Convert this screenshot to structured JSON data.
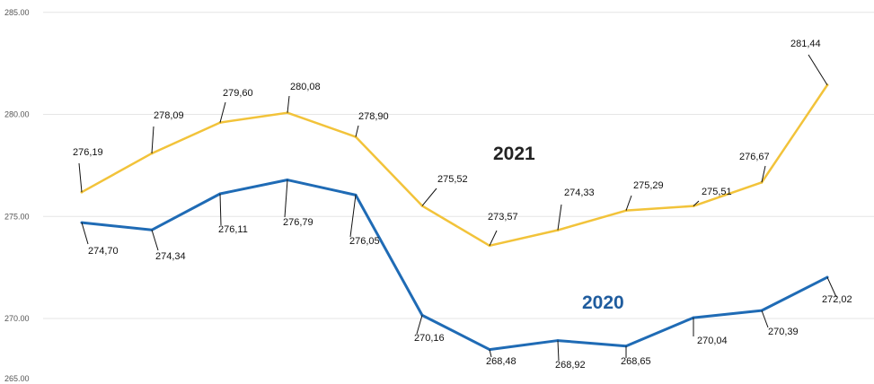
{
  "chart_data": {
    "type": "line",
    "title": "",
    "xlabel": "",
    "ylabel": "",
    "ylim": [
      268.0,
      285.0
    ],
    "y_ticks": [
      "265.00",
      "270.00",
      "275.00",
      "280.00",
      "285.00"
    ],
    "y_tick_values": [
      265,
      270,
      275,
      280,
      285
    ],
    "grid": true,
    "x": [
      1,
      2,
      3,
      4,
      5,
      6,
      7,
      8,
      9,
      10,
      11,
      12
    ],
    "series": [
      {
        "name": "2021",
        "color": "#f2c33a",
        "label_color": "#222222",
        "values": [
          276.19,
          278.09,
          279.6,
          280.08,
          278.9,
          275.52,
          273.57,
          274.33,
          275.29,
          275.51,
          276.67,
          281.44
        ],
        "labels": [
          "276,19",
          "278,09",
          "279,60",
          "280,08",
          "278,90",
          "275,52",
          "273,57",
          "274,33",
          "275,29",
          "275,51",
          "276,67",
          "281,44"
        ]
      },
      {
        "name": "2020",
        "color": "#1f6bb5",
        "label_color": "#1f5c9e",
        "values": [
          274.7,
          274.34,
          276.11,
          276.79,
          276.05,
          270.16,
          268.48,
          268.92,
          268.65,
          270.04,
          270.39,
          272.02
        ],
        "labels": [
          "274,70",
          "274,34",
          "276,11",
          "276,79",
          "276,05",
          "270,16",
          "268,48",
          "268,92",
          "268,65",
          "270,04",
          "270,39",
          "272,02"
        ]
      }
    ]
  }
}
